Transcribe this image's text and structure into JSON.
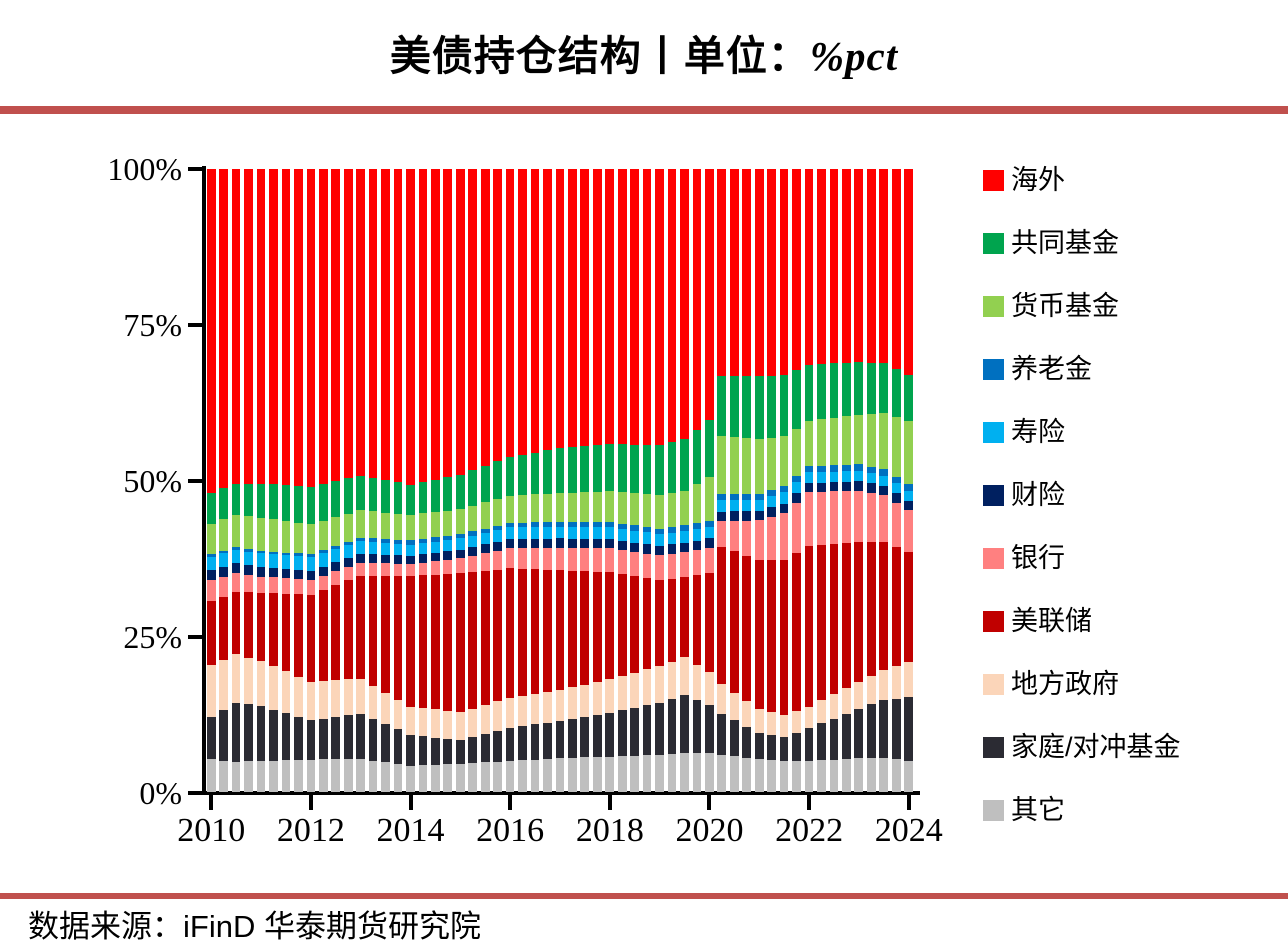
{
  "title": {
    "main": "美债持仓结构丨单位：",
    "unit": "%pct"
  },
  "source": {
    "text": "数据来源：iFinD  华泰期货研究院"
  },
  "accent_rule_color": "#C0504D",
  "chart_data": {
    "type": "bar",
    "stacked": true,
    "normalized_percent": true,
    "grid": false,
    "legend_position": "right",
    "ylim": [
      0,
      100
    ],
    "y_ticks": [
      "100%",
      "75%",
      "50%",
      "25%",
      "0%"
    ],
    "x_ticks": [
      {
        "label": "2010",
        "index": 0
      },
      {
        "label": "2012",
        "index": 8
      },
      {
        "label": "2014",
        "index": 16
      },
      {
        "label": "2016",
        "index": 24
      },
      {
        "label": "2018",
        "index": 32
      },
      {
        "label": "2020",
        "index": 40
      },
      {
        "label": "2022",
        "index": 48
      },
      {
        "label": "2024",
        "index": 56
      }
    ],
    "x": [
      "2010Q1",
      "2010Q2",
      "2010Q3",
      "2010Q4",
      "2011Q1",
      "2011Q2",
      "2011Q3",
      "2011Q4",
      "2012Q1",
      "2012Q2",
      "2012Q3",
      "2012Q4",
      "2013Q1",
      "2013Q2",
      "2013Q3",
      "2013Q4",
      "2014Q1",
      "2014Q2",
      "2014Q3",
      "2014Q4",
      "2015Q1",
      "2015Q2",
      "2015Q3",
      "2015Q4",
      "2016Q1",
      "2016Q2",
      "2016Q3",
      "2016Q4",
      "2017Q1",
      "2017Q2",
      "2017Q3",
      "2017Q4",
      "2018Q1",
      "2018Q2",
      "2018Q3",
      "2018Q4",
      "2019Q1",
      "2019Q2",
      "2019Q3",
      "2019Q4",
      "2020Q1",
      "2020Q2",
      "2020Q3",
      "2020Q4",
      "2021Q1",
      "2021Q2",
      "2021Q3",
      "2021Q4",
      "2022Q1",
      "2022Q2",
      "2022Q3",
      "2022Q4",
      "2023Q1",
      "2023Q2",
      "2023Q3",
      "2023Q4",
      "2024Q1"
    ],
    "series": [
      {
        "name": "海外",
        "color": "#FF0000",
        "values": [
          52.0,
          51.25,
          50.5,
          50.5,
          50.5,
          50.63,
          50.75,
          50.88,
          51.0,
          50.55,
          50.1,
          49.65,
          49.2,
          49.58,
          49.95,
          50.33,
          50.7,
          50.3,
          49.9,
          49.5,
          49.1,
          48.38,
          47.65,
          46.93,
          46.2,
          45.85,
          45.5,
          45.15,
          44.8,
          44.65,
          44.5,
          44.35,
          44.2,
          44.23,
          44.25,
          44.28,
          44.3,
          43.8,
          43.3,
          41.8,
          40.3,
          33.2,
          33.2,
          33.2,
          33.2,
          33.15,
          33.1,
          32.25,
          31.4,
          31.3,
          31.2,
          31.1,
          31.0,
          31.05,
          31.1,
          32.05,
          33.0
        ]
      },
      {
        "name": "共同基金",
        "color": "#00A44E",
        "values": [
          4.9,
          4.95,
          5.0,
          5.25,
          5.5,
          5.63,
          5.75,
          5.88,
          6.0,
          5.9,
          5.8,
          5.7,
          5.6,
          5.4,
          5.2,
          5.0,
          4.8,
          4.98,
          5.15,
          5.33,
          5.5,
          5.68,
          5.85,
          6.03,
          6.2,
          6.45,
          6.7,
          6.95,
          7.2,
          7.28,
          7.35,
          7.43,
          7.5,
          7.63,
          7.75,
          7.88,
          8.0,
          8.15,
          8.3,
          8.75,
          9.2,
          9.7,
          9.87,
          10.03,
          10.2,
          10.0,
          9.8,
          9.4,
          9.0,
          8.85,
          8.7,
          8.55,
          8.4,
          8.2,
          8.0,
          7.7,
          7.4
        ]
      },
      {
        "name": "货币基金",
        "color": "#92D050",
        "values": [
          4.9,
          5.05,
          5.2,
          5.25,
          5.3,
          5.18,
          5.05,
          4.93,
          4.8,
          4.7,
          4.6,
          4.5,
          4.4,
          4.33,
          4.25,
          4.18,
          4.1,
          4.08,
          4.05,
          4.03,
          4.0,
          4.1,
          4.2,
          4.3,
          4.4,
          4.45,
          4.5,
          4.55,
          4.6,
          4.7,
          4.8,
          4.9,
          5.0,
          5.1,
          5.2,
          5.3,
          5.4,
          5.5,
          5.6,
          6.3,
          7.0,
          9.3,
          9.1,
          8.9,
          8.7,
          8.35,
          8.0,
          7.65,
          7.3,
          7.48,
          7.65,
          7.83,
          8.0,
          8.5,
          9.0,
          9.6,
          10.2
        ]
      },
      {
        "name": "养老金",
        "color": "#0070C0",
        "values": [
          0.4,
          0.4,
          0.4,
          0.4,
          0.4,
          0.43,
          0.45,
          0.48,
          0.5,
          0.5,
          0.5,
          0.5,
          0.5,
          0.55,
          0.6,
          0.65,
          0.7,
          0.7,
          0.7,
          0.7,
          0.7,
          0.7,
          0.7,
          0.7,
          0.7,
          0.73,
          0.75,
          0.78,
          0.8,
          0.8,
          0.8,
          0.8,
          0.8,
          0.83,
          0.85,
          0.88,
          0.9,
          0.9,
          0.9,
          0.9,
          0.9,
          0.9,
          0.93,
          0.97,
          1.0,
          1.0,
          1.0,
          1.0,
          1.0,
          1.03,
          1.05,
          1.08,
          1.1,
          1.1,
          1.1,
          1.1,
          1.1
        ]
      },
      {
        "name": "寿险",
        "color": "#00B0F0",
        "values": [
          2.2,
          2.2,
          2.2,
          2.2,
          2.2,
          2.2,
          2.2,
          2.2,
          2.2,
          2.18,
          2.15,
          2.13,
          2.1,
          2.03,
          1.95,
          1.88,
          1.8,
          1.8,
          1.8,
          1.8,
          1.8,
          1.83,
          1.85,
          1.88,
          1.9,
          1.9,
          1.9,
          1.9,
          1.9,
          1.9,
          1.9,
          1.9,
          1.9,
          1.9,
          1.9,
          1.9,
          1.9,
          1.9,
          1.9,
          1.9,
          1.9,
          1.9,
          1.87,
          1.83,
          1.8,
          1.8,
          1.8,
          1.75,
          1.7,
          1.68,
          1.65,
          1.63,
          1.6,
          1.6,
          1.6,
          1.6,
          1.6
        ]
      },
      {
        "name": "财险",
        "color": "#002060",
        "values": [
          1.6,
          1.6,
          1.6,
          1.55,
          1.5,
          1.5,
          1.5,
          1.5,
          1.5,
          1.48,
          1.45,
          1.43,
          1.4,
          1.38,
          1.35,
          1.33,
          1.3,
          1.33,
          1.35,
          1.38,
          1.4,
          1.43,
          1.45,
          1.48,
          1.5,
          1.5,
          1.5,
          1.5,
          1.5,
          1.5,
          1.5,
          1.5,
          1.5,
          1.5,
          1.5,
          1.5,
          1.5,
          1.5,
          1.5,
          1.5,
          1.5,
          1.5,
          1.5,
          1.5,
          1.5,
          1.5,
          1.5,
          1.5,
          1.5,
          1.5,
          1.5,
          1.5,
          1.5,
          1.5,
          1.5,
          1.5,
          1.5
        ]
      },
      {
        "name": "银行",
        "color": "#FF8080",
        "values": [
          3.4,
          3.2,
          3.0,
          2.8,
          2.6,
          2.53,
          2.45,
          2.38,
          2.3,
          2.25,
          2.2,
          2.15,
          2.1,
          2.05,
          2.0,
          1.95,
          1.9,
          2.03,
          2.15,
          2.28,
          2.4,
          2.6,
          2.8,
          3.0,
          3.2,
          3.3,
          3.4,
          3.5,
          3.6,
          3.65,
          3.7,
          3.75,
          3.8,
          3.85,
          3.9,
          3.95,
          4.0,
          4.0,
          4.0,
          4.0,
          4.0,
          4.2,
          4.9,
          5.6,
          6.3,
          6.9,
          7.5,
          8.05,
          8.6,
          8.5,
          8.4,
          8.3,
          8.2,
          7.9,
          7.6,
          7.1,
          6.6
        ]
      },
      {
        "name": "美联储",
        "color": "#C00000",
        "values": [
          10.2,
          10.1,
          10.0,
          10.5,
          11.0,
          11.75,
          12.5,
          13.25,
          14.0,
          14.63,
          15.25,
          15.88,
          16.5,
          17.63,
          18.75,
          19.88,
          21.0,
          21.33,
          21.65,
          21.98,
          22.3,
          21.93,
          21.55,
          21.18,
          20.8,
          20.4,
          20.0,
          19.6,
          19.2,
          18.7,
          18.2,
          17.7,
          17.2,
          16.35,
          15.5,
          14.65,
          13.8,
          13.3,
          12.8,
          14.4,
          16.0,
          22.0,
          22.67,
          23.33,
          24.0,
          24.5,
          25.0,
          25.4,
          25.8,
          24.98,
          24.15,
          23.33,
          22.5,
          21.5,
          20.5,
          19.15,
          17.8
        ]
      },
      {
        "name": "地方政府",
        "color": "#FBD5B9",
        "values": [
          8.3,
          8.05,
          7.8,
          7.5,
          7.2,
          6.95,
          6.7,
          6.45,
          6.2,
          6.05,
          5.9,
          5.75,
          5.6,
          5.33,
          5.05,
          4.78,
          4.5,
          4.5,
          4.5,
          4.5,
          4.5,
          4.58,
          4.65,
          4.73,
          4.8,
          4.85,
          4.9,
          4.95,
          5.0,
          5.1,
          5.2,
          5.3,
          5.4,
          5.53,
          5.65,
          5.78,
          5.9,
          6.05,
          6.2,
          5.7,
          5.2,
          4.8,
          4.47,
          4.13,
          3.8,
          3.65,
          3.5,
          3.5,
          3.5,
          3.7,
          3.9,
          4.1,
          4.3,
          4.55,
          4.8,
          5.2,
          5.6
        ]
      },
      {
        "name": "家庭/对冲基金",
        "color": "#2B2B33",
        "values": [
          6.8,
          8.15,
          9.5,
          9.15,
          8.8,
          8.18,
          7.55,
          6.93,
          6.3,
          6.55,
          6.8,
          7.05,
          7.3,
          6.73,
          6.15,
          5.58,
          5.0,
          4.7,
          4.4,
          4.1,
          3.8,
          4.18,
          4.55,
          4.93,
          5.3,
          5.48,
          5.65,
          5.83,
          6.0,
          6.25,
          6.5,
          6.75,
          7.0,
          7.33,
          7.65,
          7.98,
          8.3,
          8.8,
          9.3,
          8.55,
          7.8,
          6.5,
          5.73,
          4.97,
          4.2,
          4.0,
          3.8,
          4.5,
          5.2,
          5.9,
          6.6,
          7.3,
          8.0,
          8.65,
          9.3,
          9.75,
          10.2
        ]
      },
      {
        "name": "其它",
        "color": "#BFBFBF",
        "values": [
          5.3,
          5.05,
          4.8,
          4.9,
          5.0,
          5.05,
          5.1,
          5.15,
          5.2,
          5.23,
          5.25,
          5.28,
          5.3,
          5.03,
          4.75,
          4.48,
          4.2,
          4.28,
          4.35,
          4.43,
          4.5,
          4.63,
          4.75,
          4.88,
          5.0,
          5.1,
          5.2,
          5.3,
          5.4,
          5.48,
          5.55,
          5.63,
          5.7,
          5.78,
          5.85,
          5.93,
          6.0,
          6.1,
          6.2,
          6.2,
          6.2,
          6.0,
          5.77,
          5.53,
          5.3,
          5.15,
          5.0,
          5.0,
          5.0,
          5.1,
          5.2,
          5.3,
          5.4,
          5.45,
          5.5,
          5.25,
          5.0
        ]
      }
    ]
  }
}
